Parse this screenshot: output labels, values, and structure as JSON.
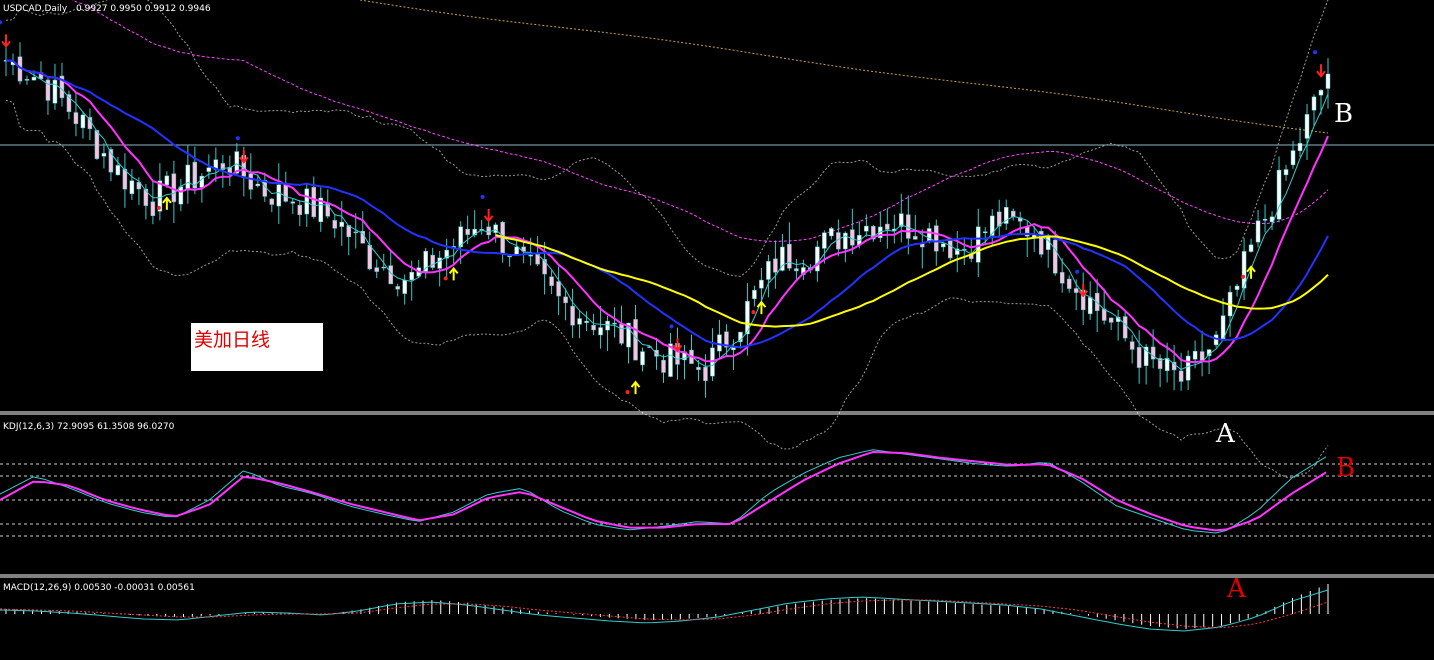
{
  "chart_data": [
    {
      "type": "candlestick",
      "title": "USDCAD,Daily",
      "ohlc_readout": "0.9927 0.9950 0.9912 0.9946",
      "annotation_box": "美加日线",
      "marker_labels": [
        "B",
        "A"
      ],
      "colors": {
        "bull": "#ffffff",
        "bear": "#ffc0e0",
        "wick": "#33cccc",
        "ma_fast": "#33cccc",
        "ma_mid": "#ff33ff",
        "ma_slow": "#2233ff",
        "ma_yellow": "#ffff00",
        "envelope": "#ff44ff",
        "long_ma": "#c8a040",
        "bands": "#9a9a9a",
        "arrow_up": "#ffff00",
        "arrow_down": "#ff2020",
        "dot_red": "#ff2020",
        "dot_blue": "#2233ff",
        "hline": "#8fb8c8"
      },
      "price_trend": [
        0.996,
        0.994,
        0.99,
        0.985,
        0.982,
        0.984,
        0.986,
        0.983,
        0.982,
        0.98,
        0.976,
        0.974,
        0.977,
        0.98,
        0.976,
        0.972,
        0.97,
        0.968,
        0.966,
        0.965,
        0.97,
        0.976,
        0.977,
        0.979,
        0.98,
        0.979,
        0.977,
        0.98,
        0.979,
        0.974,
        0.97,
        0.966,
        0.964,
        0.968,
        0.978,
        0.986,
        0.9946
      ]
    },
    {
      "type": "line",
      "title": "KDJ(12,6,3) 72.9095 61.3508 96.0270",
      "levels": [
        80,
        70,
        50,
        30,
        20
      ],
      "marker_labels": [
        "B",
        "A"
      ],
      "series": [
        {
          "values": [
            55,
            70,
            60,
            48,
            40,
            35,
            50,
            75,
            62,
            55,
            45,
            38,
            32,
            40,
            55,
            60,
            42,
            30,
            25,
            28,
            32,
            30,
            55,
            72,
            85,
            92,
            88,
            84,
            80,
            78,
            82,
            65,
            45,
            35,
            25,
            22,
            40,
            68,
            86
          ]
        },
        {
          "values": [
            50,
            66,
            62,
            50,
            42,
            36,
            46,
            70,
            64,
            56,
            47,
            40,
            33,
            38,
            52,
            57,
            45,
            33,
            27,
            27,
            30,
            30,
            48,
            66,
            80,
            90,
            89,
            85,
            82,
            79,
            80,
            68,
            50,
            38,
            28,
            24,
            34,
            55,
            73
          ]
        }
      ]
    },
    {
      "type": "bar",
      "title": "MACD(12,26,9) 0.00530 -0.00031 0.00561",
      "series": [
        {
          "values": [
            0.5,
            0.4,
            0.2,
            0.0,
            -0.2,
            -0.3,
            -0.1,
            0.2,
            0.1,
            0.0,
            0.5,
            1.2,
            1.4,
            1.1,
            0.6,
            0.2,
            -0.1,
            -0.4,
            -0.6,
            -0.5,
            -0.2,
            0.4,
            1.0,
            1.4,
            1.6,
            1.4,
            1.2,
            1.0,
            0.8,
            0.5,
            0.0,
            -0.6,
            -1.2,
            -1.5,
            -1.2,
            -0.2,
            1.6,
            3.0
          ]
        },
        {
          "values": [
            0.4,
            0.3,
            0.1,
            -0.2,
            -0.5,
            -0.6,
            -0.2,
            0.2,
            0.1,
            -0.1,
            0.3,
            1.0,
            1.2,
            0.9,
            0.4,
            -0.1,
            -0.4,
            -0.7,
            -0.9,
            -0.7,
            -0.3,
            0.4,
            1.1,
            1.5,
            1.7,
            1.5,
            1.3,
            1.1,
            0.9,
            0.5,
            -0.2,
            -0.9,
            -1.5,
            -1.7,
            -1.3,
            -0.3,
            1.3,
            2.4
          ]
        },
        {
          "values": [
            0.5,
            0.4,
            0.3,
            0.1,
            -0.1,
            -0.3,
            -0.3,
            -0.1,
            0.0,
            0.0,
            0.1,
            0.6,
            1.0,
            1.0,
            0.8,
            0.4,
            0.1,
            -0.2,
            -0.5,
            -0.6,
            -0.5,
            -0.1,
            0.5,
            1.0,
            1.3,
            1.4,
            1.4,
            1.2,
            1.0,
            0.8,
            0.4,
            -0.2,
            -0.8,
            -1.2,
            -1.4,
            -1.0,
            0.0,
            1.2
          ]
        }
      ]
    }
  ]
}
